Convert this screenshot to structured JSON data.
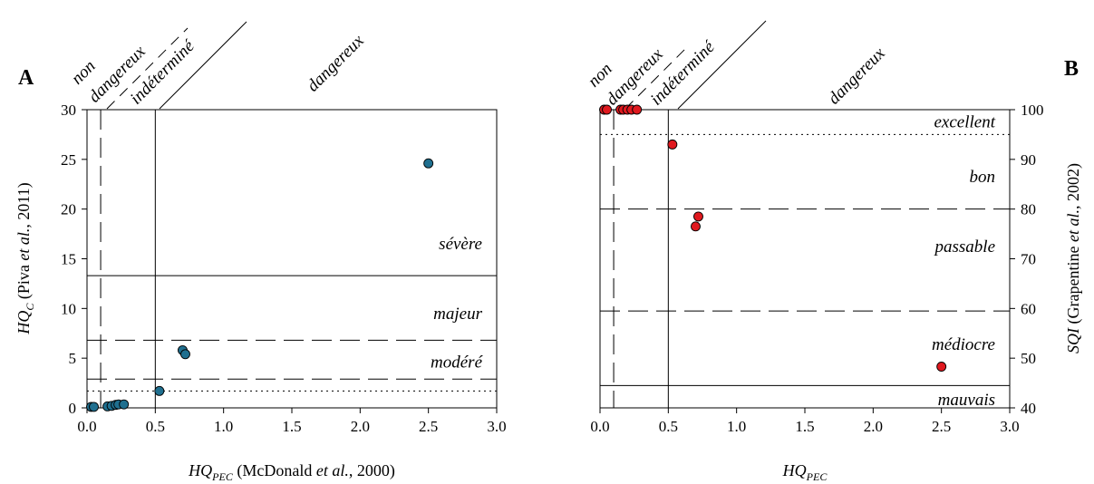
{
  "chart_data": [
    {
      "type": "scatter",
      "panel_label": "A",
      "xlabel": {
        "main": "HQ",
        "sub": "PEC",
        "rest_a": " (McDonald ",
        "italic": "et al.",
        "rest_b": ", 2000)"
      },
      "ylabel": {
        "main": "HQ",
        "sub": "C",
        "rest_a": " (Piva ",
        "italic": "et al.",
        "rest_b": ", 2011)"
      },
      "xlim": [
        0,
        3.0
      ],
      "ylim": [
        0,
        30
      ],
      "xticks": [
        "0.0",
        "0.5",
        "1.0",
        "1.5",
        "2.0",
        "2.5",
        "3.0"
      ],
      "yticks": [
        "0",
        "5",
        "10",
        "15",
        "20",
        "25",
        "30"
      ],
      "marker_color": "#1f6f8f",
      "points": [
        {
          "x": 0.03,
          "y": 0.1
        },
        {
          "x": 0.05,
          "y": 0.1
        },
        {
          "x": 0.15,
          "y": 0.15
        },
        {
          "x": 0.18,
          "y": 0.2
        },
        {
          "x": 0.21,
          "y": 0.3
        },
        {
          "x": 0.23,
          "y": 0.35
        },
        {
          "x": 0.27,
          "y": 0.35
        },
        {
          "x": 0.53,
          "y": 1.7
        },
        {
          "x": 0.7,
          "y": 5.8
        },
        {
          "x": 0.72,
          "y": 5.4
        },
        {
          "x": 2.5,
          "y": 24.6
        }
      ],
      "hlines": [
        {
          "y": 13.3,
          "style": "solid"
        },
        {
          "y": 6.8,
          "style": "dashed"
        },
        {
          "y": 2.9,
          "style": "dashed"
        },
        {
          "y": 1.7,
          "style": "dotted"
        }
      ],
      "vlines": [
        {
          "x": 0.1,
          "style": "dashed"
        },
        {
          "x": 0.5,
          "style": "solid"
        }
      ],
      "zones": [
        {
          "label": "sévère",
          "y": 16.5
        },
        {
          "label": "majeur",
          "y": 9.5
        },
        {
          "label": "modéré",
          "y": 4.6
        }
      ],
      "top_labels": {
        "non": "non",
        "dangereux": "dangereux",
        "indetermine": "indéterminé",
        "dangereux_right": "dangereux"
      }
    },
    {
      "type": "scatter",
      "panel_label": "B",
      "xlabel": {
        "main": "HQ",
        "sub": "PEC"
      },
      "ylabel": {
        "main": "SQI",
        "rest_a": " (Grapentine ",
        "italic": "et al.",
        "rest_b": ", 2002)"
      },
      "xlim": [
        0,
        3.0
      ],
      "ylim": [
        40,
        100
      ],
      "xticks": [
        "0.0",
        "0.5",
        "1.0",
        "1.5",
        "2.0",
        "2.5",
        "3.0"
      ],
      "yticks": [
        "40",
        "50",
        "60",
        "70",
        "80",
        "90",
        "100"
      ],
      "marker_color": "#e0191f",
      "points": [
        {
          "x": 0.03,
          "y": 100
        },
        {
          "x": 0.05,
          "y": 100
        },
        {
          "x": 0.15,
          "y": 100
        },
        {
          "x": 0.17,
          "y": 100
        },
        {
          "x": 0.2,
          "y": 100
        },
        {
          "x": 0.23,
          "y": 100
        },
        {
          "x": 0.27,
          "y": 100
        },
        {
          "x": 0.53,
          "y": 93
        },
        {
          "x": 0.7,
          "y": 76.5
        },
        {
          "x": 0.72,
          "y": 78.5
        },
        {
          "x": 2.5,
          "y": 48.3
        }
      ],
      "hlines": [
        {
          "y": 95,
          "style": "dotted"
        },
        {
          "y": 80,
          "style": "dashed"
        },
        {
          "y": 59.5,
          "style": "dashed"
        },
        {
          "y": 44.5,
          "style": "solid"
        }
      ],
      "vlines": [
        {
          "x": 0.1,
          "style": "dashed"
        },
        {
          "x": 0.5,
          "style": "solid"
        }
      ],
      "zones": [
        {
          "label": "excellent",
          "y": 97.5
        },
        {
          "label": "bon",
          "y": 86.5
        },
        {
          "label": "passable",
          "y": 72.5
        },
        {
          "label": "médiocre",
          "y": 52.8
        },
        {
          "label": "mauvais",
          "y": 41.6
        }
      ],
      "top_labels": {
        "non": "non",
        "dangereux": "dangereux",
        "indetermine": "indéterminé",
        "dangereux_right": "dangereux"
      }
    }
  ]
}
